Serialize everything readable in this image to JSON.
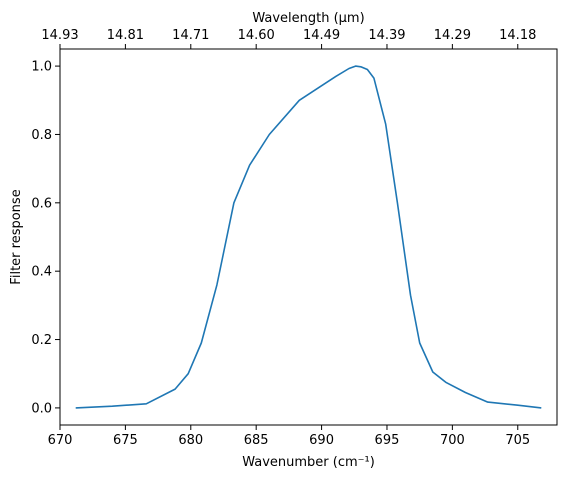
{
  "chart_data": {
    "type": "line",
    "title": "",
    "xlabel": "Wavenumber (cm⁻¹)",
    "ylabel": "Filter response",
    "x2label": "Wavelength (μm)",
    "xlim": [
      670,
      708
    ],
    "ylim": [
      -0.05,
      1.05
    ],
    "xticks": [
      670,
      675,
      680,
      685,
      690,
      695,
      700,
      705
    ],
    "yticks": [
      0.0,
      0.2,
      0.4,
      0.6,
      0.8,
      1.0
    ],
    "x2ticks": [
      "14.93",
      "14.81",
      "14.71",
      "14.60",
      "14.49",
      "14.39",
      "14.29",
      "14.18"
    ],
    "grid": false,
    "line_color": "#1f77b4",
    "series": [
      {
        "x": [
          671.2,
          674,
          676.6,
          678.8,
          679.8,
          680.8,
          682,
          683.3,
          684.5,
          686,
          688.3,
          689.9,
          691.1,
          692.1,
          692.6,
          693,
          693.5,
          694,
          694.9,
          695.8,
          696.8,
          697.5,
          698.5,
          699.5,
          701,
          702.7,
          705,
          706.8
        ],
        "y": [
          0.0,
          0.005,
          0.012,
          0.055,
          0.1,
          0.19,
          0.36,
          0.6,
          0.71,
          0.8,
          0.9,
          0.94,
          0.97,
          0.993,
          1.0,
          0.998,
          0.99,
          0.965,
          0.83,
          0.6,
          0.33,
          0.19,
          0.105,
          0.075,
          0.045,
          0.017,
          0.008,
          0.0
        ]
      }
    ]
  }
}
